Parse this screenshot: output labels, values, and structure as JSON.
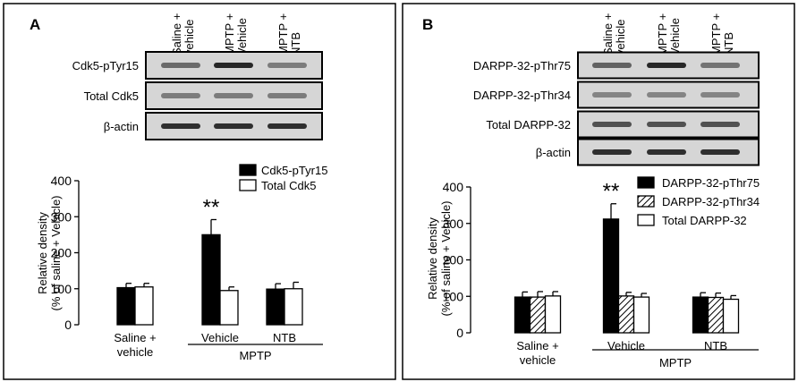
{
  "chart_data": [
    {
      "panel_label": "A",
      "type": "bar",
      "lane_headers": [
        [
          "Saline +",
          "vehicle"
        ],
        [
          "MPTP +",
          "Vehicle"
        ],
        [
          "MPTP +",
          "NTB"
        ]
      ],
      "blot_rows": [
        "Cdk5-pTyr15",
        "Total Cdk5",
        "β-actin"
      ],
      "ylabel": [
        "Relative density",
        "(% of saline + Vehicle)"
      ],
      "ylim": [
        0,
        400
      ],
      "yticks": [
        "0",
        "100",
        "200",
        "300",
        "400"
      ],
      "categories": [
        [
          "Saline +",
          "vehicle"
        ],
        [
          "Vehicle"
        ],
        [
          "NTB"
        ]
      ],
      "group_label": "MPTP",
      "series": [
        {
          "name": "Cdk5-pTyr15",
          "fill": "#000000",
          "values": [
            103,
            250,
            99
          ],
          "errors": [
            12,
            42,
            15
          ]
        },
        {
          "name": "Total Cdk5",
          "fill": "#ffffff",
          "values": [
            105,
            95,
            100
          ],
          "errors": [
            10,
            10,
            18
          ]
        }
      ],
      "significance": {
        "label": "**",
        "category_index": 1,
        "series_index": 0
      },
      "legend_position": "top-right"
    },
    {
      "panel_label": "B",
      "type": "bar",
      "lane_headers": [
        [
          "Saline +",
          "vehicle"
        ],
        [
          "MPTP +",
          "Vehicle"
        ],
        [
          "MPTP +",
          "NTB"
        ]
      ],
      "blot_rows": [
        "DARPP-32-pThr75",
        "DARPP-32-pThr34",
        "Total DARPP-32",
        "β-actin"
      ],
      "ylabel": [
        "Relative density",
        "(% of saline + Vehicle)"
      ],
      "ylim": [
        0,
        400
      ],
      "yticks": [
        "0",
        "100",
        "200",
        "300",
        "400"
      ],
      "categories": [
        [
          "Saline +",
          "vehicle"
        ],
        [
          "Vehicle"
        ],
        [
          "NTB"
        ]
      ],
      "group_label": "MPTP",
      "series": [
        {
          "name": "DARPP-32-pThr75",
          "fill": "#000000",
          "values": [
            98,
            312,
            98
          ],
          "errors": [
            14,
            42,
            12
          ]
        },
        {
          "name": "DARPP-32-pThr34",
          "fill": "hatch",
          "values": [
            98,
            101,
            97
          ],
          "errors": [
            15,
            10,
            12
          ]
        },
        {
          "name": "Total DARPP-32",
          "fill": "#ffffff",
          "values": [
            101,
            98,
            92
          ],
          "errors": [
            12,
            10,
            10
          ]
        }
      ],
      "significance": {
        "label": "**",
        "category_index": 1,
        "series_index": 0
      },
      "legend_position": "top-right"
    }
  ]
}
